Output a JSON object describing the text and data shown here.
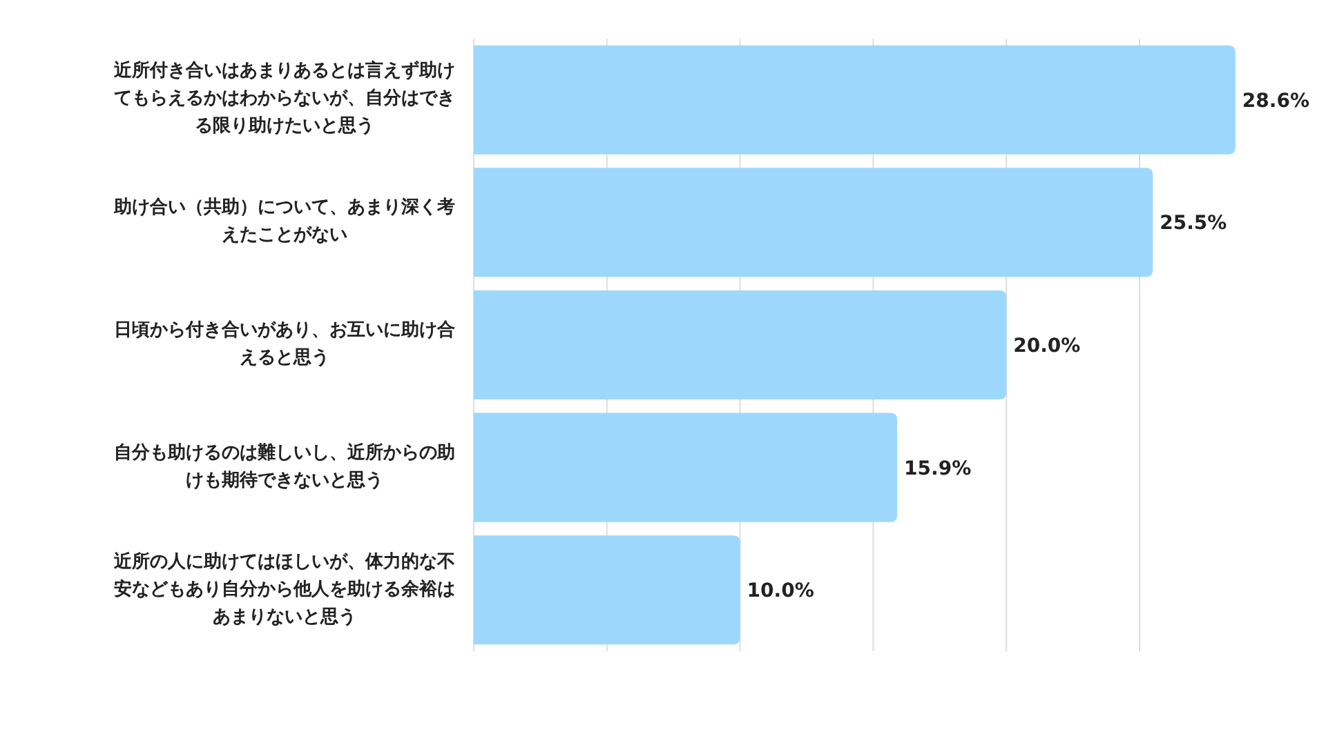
{
  "chart_data": {
    "type": "bar",
    "orientation": "horizontal",
    "categories": [
      "近所付き合いはあまりあるとは言えず助けてもらえるかはわからないが、自分はできる限り助けたいと思う",
      "助け合い（共助）について、あまり深く考えたことがない",
      "日頃から付き合いがあり、お互いに助け合えると思う",
      "自分も助けるのは難しいし、近所からの助けも期待できないと思う",
      "近所の人に助けてはほしいが、体力的な不安などもあり自分から他人を助ける余裕はあまりないと思う"
    ],
    "values": [
      28.6,
      25.5,
      20.0,
      15.9,
      10.0
    ],
    "value_labels": [
      "28.6%",
      "25.5%",
      "20.0%",
      "15.9%",
      "10.0%"
    ],
    "color": "#9dd8fc",
    "xticks": [
      {
        "value": 0,
        "label": null
      },
      {
        "value": 5,
        "label": null
      },
      {
        "value": 10,
        "label": null
      },
      {
        "value": 15,
        "label": null
      },
      {
        "value": 20,
        "label": null
      },
      {
        "value": 25,
        "label": null
      }
    ],
    "grid": "x",
    "tick_labels": "y"
  }
}
